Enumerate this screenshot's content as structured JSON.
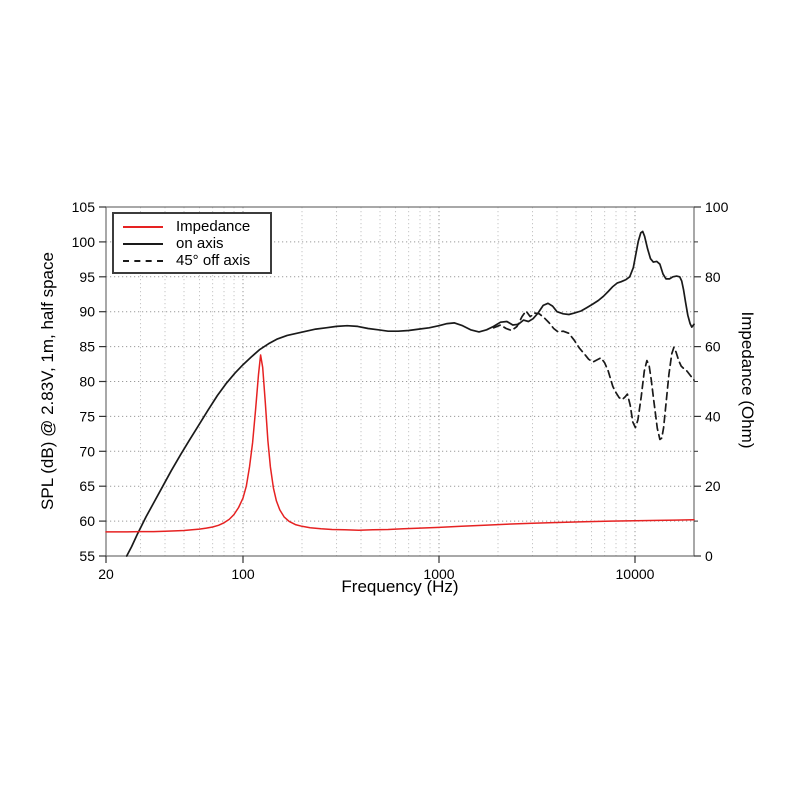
{
  "chart_data": {
    "type": "line",
    "title": "",
    "xlabel": "Frequency (Hz)",
    "ylabel_left": "SPL (dB) @ 2.83V, 1m, half space",
    "ylabel_right": "Impedance (Ohm)",
    "x_scale": "log",
    "x_range": [
      20,
      20000
    ],
    "y_left_range": [
      55,
      105
    ],
    "y_right_range": [
      0,
      100
    ],
    "grid": true,
    "legend_position": "top-left",
    "x_ticks": [
      {
        "value": 20,
        "label": "20"
      },
      {
        "value": 100,
        "label": "100"
      },
      {
        "value": 1000,
        "label": "1000"
      },
      {
        "value": 10000,
        "label": "10000"
      }
    ],
    "x_major_gridlines": [
      100,
      1000,
      10000
    ],
    "x_minor_gridlines": [
      30,
      40,
      50,
      60,
      70,
      80,
      90,
      200,
      300,
      400,
      500,
      600,
      700,
      800,
      900,
      2000,
      3000,
      4000,
      5000,
      6000,
      7000,
      8000,
      9000
    ],
    "y_left_ticks": [
      {
        "value": 55,
        "label": "55"
      },
      {
        "value": 60,
        "label": "60"
      },
      {
        "value": 65,
        "label": "65"
      },
      {
        "value": 70,
        "label": "70"
      },
      {
        "value": 75,
        "label": "75"
      },
      {
        "value": 80,
        "label": "80"
      },
      {
        "value": 85,
        "label": "85"
      },
      {
        "value": 90,
        "label": "90"
      },
      {
        "value": 95,
        "label": "95"
      },
      {
        "value": 100,
        "label": "100"
      },
      {
        "value": 105,
        "label": "105"
      }
    ],
    "y_right_ticks": [
      {
        "value": 0,
        "label": "0"
      },
      {
        "value": 20,
        "label": "20"
      },
      {
        "value": 40,
        "label": "40"
      },
      {
        "value": 60,
        "label": "60"
      },
      {
        "value": 80,
        "label": "80"
      },
      {
        "value": 100,
        "label": "100"
      }
    ],
    "y_right_minor_ticks": [
      10,
      30,
      50,
      70,
      90
    ],
    "y_gridlines": [
      60,
      65,
      70,
      75,
      80,
      85,
      90,
      95,
      100
    ],
    "series": [
      {
        "name": "on axis",
        "axis": "left",
        "unit": "dB",
        "color": "#1a1a1a",
        "style": "solid",
        "points": [
          [
            25.5,
            55
          ],
          [
            27,
            56.3
          ],
          [
            29,
            58.2
          ],
          [
            32,
            60.6
          ],
          [
            35,
            62.6
          ],
          [
            39,
            65
          ],
          [
            43,
            67.2
          ],
          [
            48,
            69.5
          ],
          [
            53,
            71.5
          ],
          [
            59,
            73.6
          ],
          [
            66,
            75.8
          ],
          [
            74,
            78
          ],
          [
            82,
            79.7
          ],
          [
            91,
            81.2
          ],
          [
            100,
            82.4
          ],
          [
            110,
            83.5
          ],
          [
            122,
            84.6
          ],
          [
            135,
            85.4
          ],
          [
            150,
            86.1
          ],
          [
            168,
            86.6
          ],
          [
            188,
            86.9
          ],
          [
            210,
            87.2
          ],
          [
            235,
            87.5
          ],
          [
            265,
            87.7
          ],
          [
            300,
            87.9
          ],
          [
            340,
            88
          ],
          [
            385,
            87.9
          ],
          [
            435,
            87.6
          ],
          [
            490,
            87.4
          ],
          [
            550,
            87.2
          ],
          [
            620,
            87.2
          ],
          [
            700,
            87.3
          ],
          [
            790,
            87.5
          ],
          [
            890,
            87.7
          ],
          [
            1000,
            88
          ],
          [
            1100,
            88.3
          ],
          [
            1200,
            88.4
          ],
          [
            1320,
            88
          ],
          [
            1450,
            87.4
          ],
          [
            1600,
            87.1
          ],
          [
            1750,
            87.4
          ],
          [
            1900,
            87.9
          ],
          [
            2060,
            88.5
          ],
          [
            2220,
            88.6
          ],
          [
            2380,
            88.1
          ],
          [
            2540,
            88.2
          ],
          [
            2700,
            88.8
          ],
          [
            2860,
            88.6
          ],
          [
            3020,
            89
          ],
          [
            3200,
            89.8
          ],
          [
            3400,
            90.9
          ],
          [
            3600,
            91.2
          ],
          [
            3800,
            90.8
          ],
          [
            4000,
            90
          ],
          [
            4300,
            89.7
          ],
          [
            4600,
            89.6
          ],
          [
            4900,
            89.8
          ],
          [
            5300,
            90.1
          ],
          [
            5700,
            90.6
          ],
          [
            6100,
            91.1
          ],
          [
            6500,
            91.6
          ],
          [
            6900,
            92.2
          ],
          [
            7300,
            92.9
          ],
          [
            7700,
            93.6
          ],
          [
            8100,
            94.1
          ],
          [
            8500,
            94.3
          ],
          [
            9000,
            94.6
          ],
          [
            9400,
            95
          ],
          [
            9800,
            96.3
          ],
          [
            10100,
            98.2
          ],
          [
            10400,
            100.1
          ],
          [
            10700,
            101.3
          ],
          [
            10950,
            101.5
          ],
          [
            11200,
            100.8
          ],
          [
            11600,
            99
          ],
          [
            12000,
            97.6
          ],
          [
            12400,
            97.1
          ],
          [
            12900,
            97.2
          ],
          [
            13400,
            96.8
          ],
          [
            13900,
            95.4
          ],
          [
            14400,
            94.7
          ],
          [
            15000,
            94.7
          ],
          [
            15600,
            95
          ],
          [
            16300,
            95.1
          ],
          [
            16900,
            95
          ],
          [
            17300,
            94.4
          ],
          [
            17700,
            93.1
          ],
          [
            18100,
            91.4
          ],
          [
            18600,
            89.5
          ],
          [
            19100,
            88.3
          ],
          [
            19500,
            87.8
          ],
          [
            20000,
            88.2
          ]
        ]
      },
      {
        "name": "45° off axis",
        "axis": "left",
        "unit": "dB",
        "color": "#1a1a1a",
        "style": "dashed",
        "points": [
          [
            1900,
            87.7
          ],
          [
            2060,
            88.1
          ],
          [
            2200,
            87.6
          ],
          [
            2350,
            87.3
          ],
          [
            2500,
            87.9
          ],
          [
            2650,
            89.3
          ],
          [
            2780,
            90.1
          ],
          [
            2920,
            89.3
          ],
          [
            3080,
            89.8
          ],
          [
            3250,
            89.7
          ],
          [
            3450,
            89.1
          ],
          [
            3650,
            88.4
          ],
          [
            3850,
            87.6
          ],
          [
            4050,
            87.1
          ],
          [
            4300,
            87.2
          ],
          [
            4600,
            86.9
          ],
          [
            4900,
            85.9
          ],
          [
            5200,
            84.8
          ],
          [
            5500,
            84
          ],
          [
            5800,
            83.2
          ],
          [
            6100,
            82.8
          ],
          [
            6400,
            83.1
          ],
          [
            6700,
            83.4
          ],
          [
            7000,
            82.7
          ],
          [
            7300,
            81.5
          ],
          [
            7700,
            79.3
          ],
          [
            8000,
            78.4
          ],
          [
            8300,
            77.7
          ],
          [
            8600,
            77.4
          ],
          [
            8900,
            77.8
          ],
          [
            9150,
            78.2
          ],
          [
            9450,
            76.6
          ],
          [
            9750,
            74.2
          ],
          [
            10050,
            73.4
          ],
          [
            10350,
            74.5
          ],
          [
            10750,
            77.8
          ],
          [
            11150,
            81.5
          ],
          [
            11500,
            83
          ],
          [
            11800,
            82.3
          ],
          [
            12100,
            80.3
          ],
          [
            12500,
            77
          ],
          [
            13000,
            73.3
          ],
          [
            13400,
            71.7
          ],
          [
            13700,
            71.9
          ],
          [
            14000,
            73.4
          ],
          [
            14400,
            76.8
          ],
          [
            14900,
            81
          ],
          [
            15400,
            84
          ],
          [
            15800,
            84.9
          ],
          [
            16200,
            84.2
          ],
          [
            16700,
            83
          ],
          [
            17200,
            82.2
          ],
          [
            17800,
            81.8
          ],
          [
            18400,
            81.5
          ],
          [
            19000,
            81
          ],
          [
            19500,
            80.6
          ],
          [
            20000,
            80.2
          ]
        ]
      },
      {
        "name": "Impedance",
        "axis": "right",
        "unit": "Ohm",
        "color": "#e62222",
        "style": "solid",
        "points": [
          [
            20,
            6.9
          ],
          [
            25,
            6.9
          ],
          [
            30,
            7
          ],
          [
            35,
            7
          ],
          [
            40,
            7.1
          ],
          [
            45,
            7.2
          ],
          [
            50,
            7.3
          ],
          [
            55,
            7.5
          ],
          [
            60,
            7.7
          ],
          [
            65,
            8
          ],
          [
            70,
            8.3
          ],
          [
            75,
            8.8
          ],
          [
            80,
            9.5
          ],
          [
            85,
            10.5
          ],
          [
            90,
            11.9
          ],
          [
            95,
            13.9
          ],
          [
            100,
            16.6
          ],
          [
            104,
            20
          ],
          [
            108,
            25.5
          ],
          [
            112,
            32.5
          ],
          [
            116,
            42
          ],
          [
            120,
            52
          ],
          [
            123,
            57.6
          ],
          [
            126,
            54
          ],
          [
            130,
            44
          ],
          [
            134,
            33
          ],
          [
            138,
            25.5
          ],
          [
            143,
            19.5
          ],
          [
            148,
            15.8
          ],
          [
            154,
            13.2
          ],
          [
            162,
            11.2
          ],
          [
            172,
            9.9
          ],
          [
            185,
            9
          ],
          [
            200,
            8.5
          ],
          [
            220,
            8.1
          ],
          [
            250,
            7.8
          ],
          [
            285,
            7.6
          ],
          [
            330,
            7.5
          ],
          [
            390,
            7.4
          ],
          [
            460,
            7.5
          ],
          [
            550,
            7.6
          ],
          [
            660,
            7.8
          ],
          [
            800,
            8
          ],
          [
            1000,
            8.2
          ],
          [
            1300,
            8.5
          ],
          [
            1700,
            8.8
          ],
          [
            2200,
            9.1
          ],
          [
            3000,
            9.4
          ],
          [
            4000,
            9.6
          ],
          [
            5500,
            9.8
          ],
          [
            7500,
            10
          ],
          [
            10000,
            10.1
          ],
          [
            13000,
            10.2
          ],
          [
            16000,
            10.3
          ],
          [
            20000,
            10.4
          ]
        ]
      }
    ]
  },
  "legend": {
    "items": [
      {
        "label": "Impedance",
        "color": "#e62222",
        "style": "solid"
      },
      {
        "label": "on axis",
        "color": "#1a1a1a",
        "style": "solid"
      },
      {
        "label": "45° off axis",
        "color": "#1a1a1a",
        "style": "dashed"
      }
    ]
  },
  "colors": {
    "impedance": "#e62222",
    "curves": "#1a1a1a",
    "frame": "#6e6e6e",
    "grid_major": "#9a9a9a",
    "grid_minor": "#c6c6c6",
    "ticks": "#333333"
  }
}
